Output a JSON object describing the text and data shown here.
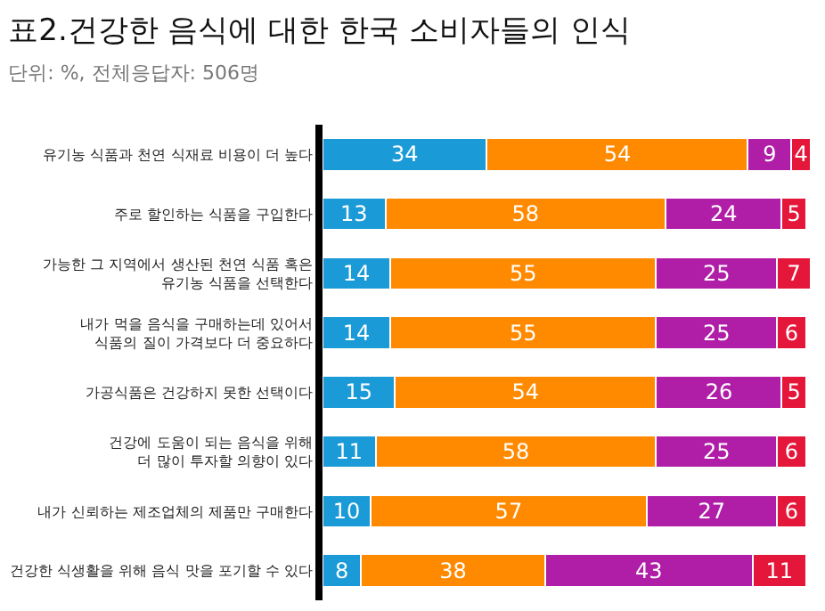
{
  "chart_data": {
    "type": "bar",
    "orientation": "horizontal",
    "stacked": true,
    "data_labels": true,
    "tick_labels": "y",
    "title": "표2.건강한 음식에 대한 한국 소비자들의 인식",
    "subtitle": "단위: %, 전체응답자: 506명",
    "categories": [
      "유기농 식품과 천연 식재료 비용이 더 높다",
      "주로 할인하는 식품을 구입한다",
      "가능한 그 지역에서 생산된 천연 식품 혹은\n유기농 식품을 선택한다",
      "내가 먹을 음식을 구매하는데 있어서\n식품의 질이 가격보다 더 중요하다",
      "가공식품은 건강하지 못한 선택이다",
      "건강에 도움이 되는 음식을 위해\n더 많이 투자할 의향이 있다",
      "내가 신뢰하는 제조업체의 제품만 구매한다",
      "건강한 식생활을 위해 음식 맛을 포기할 수 있다"
    ],
    "xlim": [
      0,
      101
    ],
    "series": [
      {
        "color": "#1a9ad6",
        "values": [
          34,
          13,
          14,
          14,
          15,
          11,
          10,
          8
        ]
      },
      {
        "color": "#ff8a00",
        "values": [
          54,
          58,
          55,
          55,
          54,
          58,
          57,
          38
        ]
      },
      {
        "color": "#b01ea8",
        "values": [
          9,
          24,
          25,
          25,
          26,
          25,
          27,
          43
        ]
      },
      {
        "color": "#e4163a",
        "values": [
          4,
          5,
          7,
          6,
          5,
          6,
          6,
          11
        ]
      }
    ]
  }
}
